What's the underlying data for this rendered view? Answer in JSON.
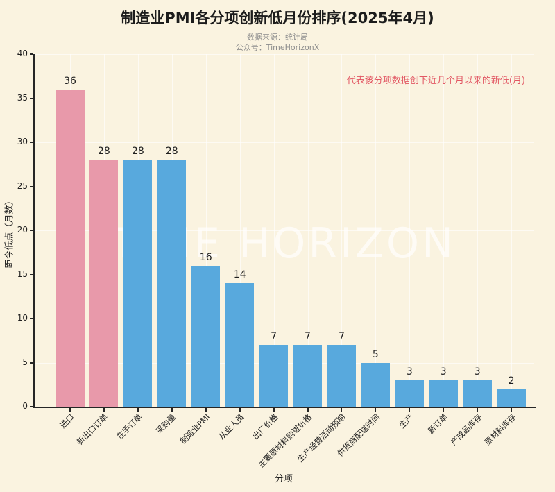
{
  "title": "制造业PMI各分项创新低月份排序(2025年4月)",
  "subtitle": [
    "数据来源：统计局",
    "公众号：TimeHorizonX"
  ],
  "annotation": "代表该分项数据创下近几个月以来的新低(月)",
  "watermark": "TIME HORIZON",
  "colors": {
    "background": "#faf3e0",
    "bar_pink": "#e899aa",
    "bar_blue": "#58a9dd",
    "annotation_red": "#e25763",
    "subtitle_gray": "#8c8c8c",
    "axis_dark": "#262626",
    "grid": "rgba(255,255,255,0.6)",
    "watermark": "rgba(255,255,255,0.68)"
  },
  "chart_data": {
    "type": "bar",
    "title": "制造业PMI各分项创新低月份排序(2025年4月)",
    "categories": [
      "进口",
      "新出口订单",
      "在手订单",
      "采购量",
      "制造业PMI",
      "从业人员",
      "出厂价格",
      "主要原材料购进价格",
      "生产经营活动预期",
      "供货商配送时间",
      "生产",
      "新订单",
      "产成品库存",
      "原材料库存"
    ],
    "values": [
      36,
      28,
      28,
      28,
      16,
      14,
      7,
      7,
      7,
      5,
      3,
      3,
      3,
      2
    ],
    "bar_colors": [
      "#e899aa",
      "#e899aa",
      "#58a9dd",
      "#58a9dd",
      "#58a9dd",
      "#58a9dd",
      "#58a9dd",
      "#58a9dd",
      "#58a9dd",
      "#58a9dd",
      "#58a9dd",
      "#58a9dd",
      "#58a9dd",
      "#58a9dd"
    ],
    "xlabel": "分项",
    "ylabel": "距今低点（月数）",
    "ylim": [
      0,
      40
    ],
    "yticks": [
      0,
      5,
      10,
      15,
      20,
      25,
      30,
      35,
      40
    ],
    "grid": true,
    "legend_position": "none",
    "tick_rotation_deg": 45
  }
}
